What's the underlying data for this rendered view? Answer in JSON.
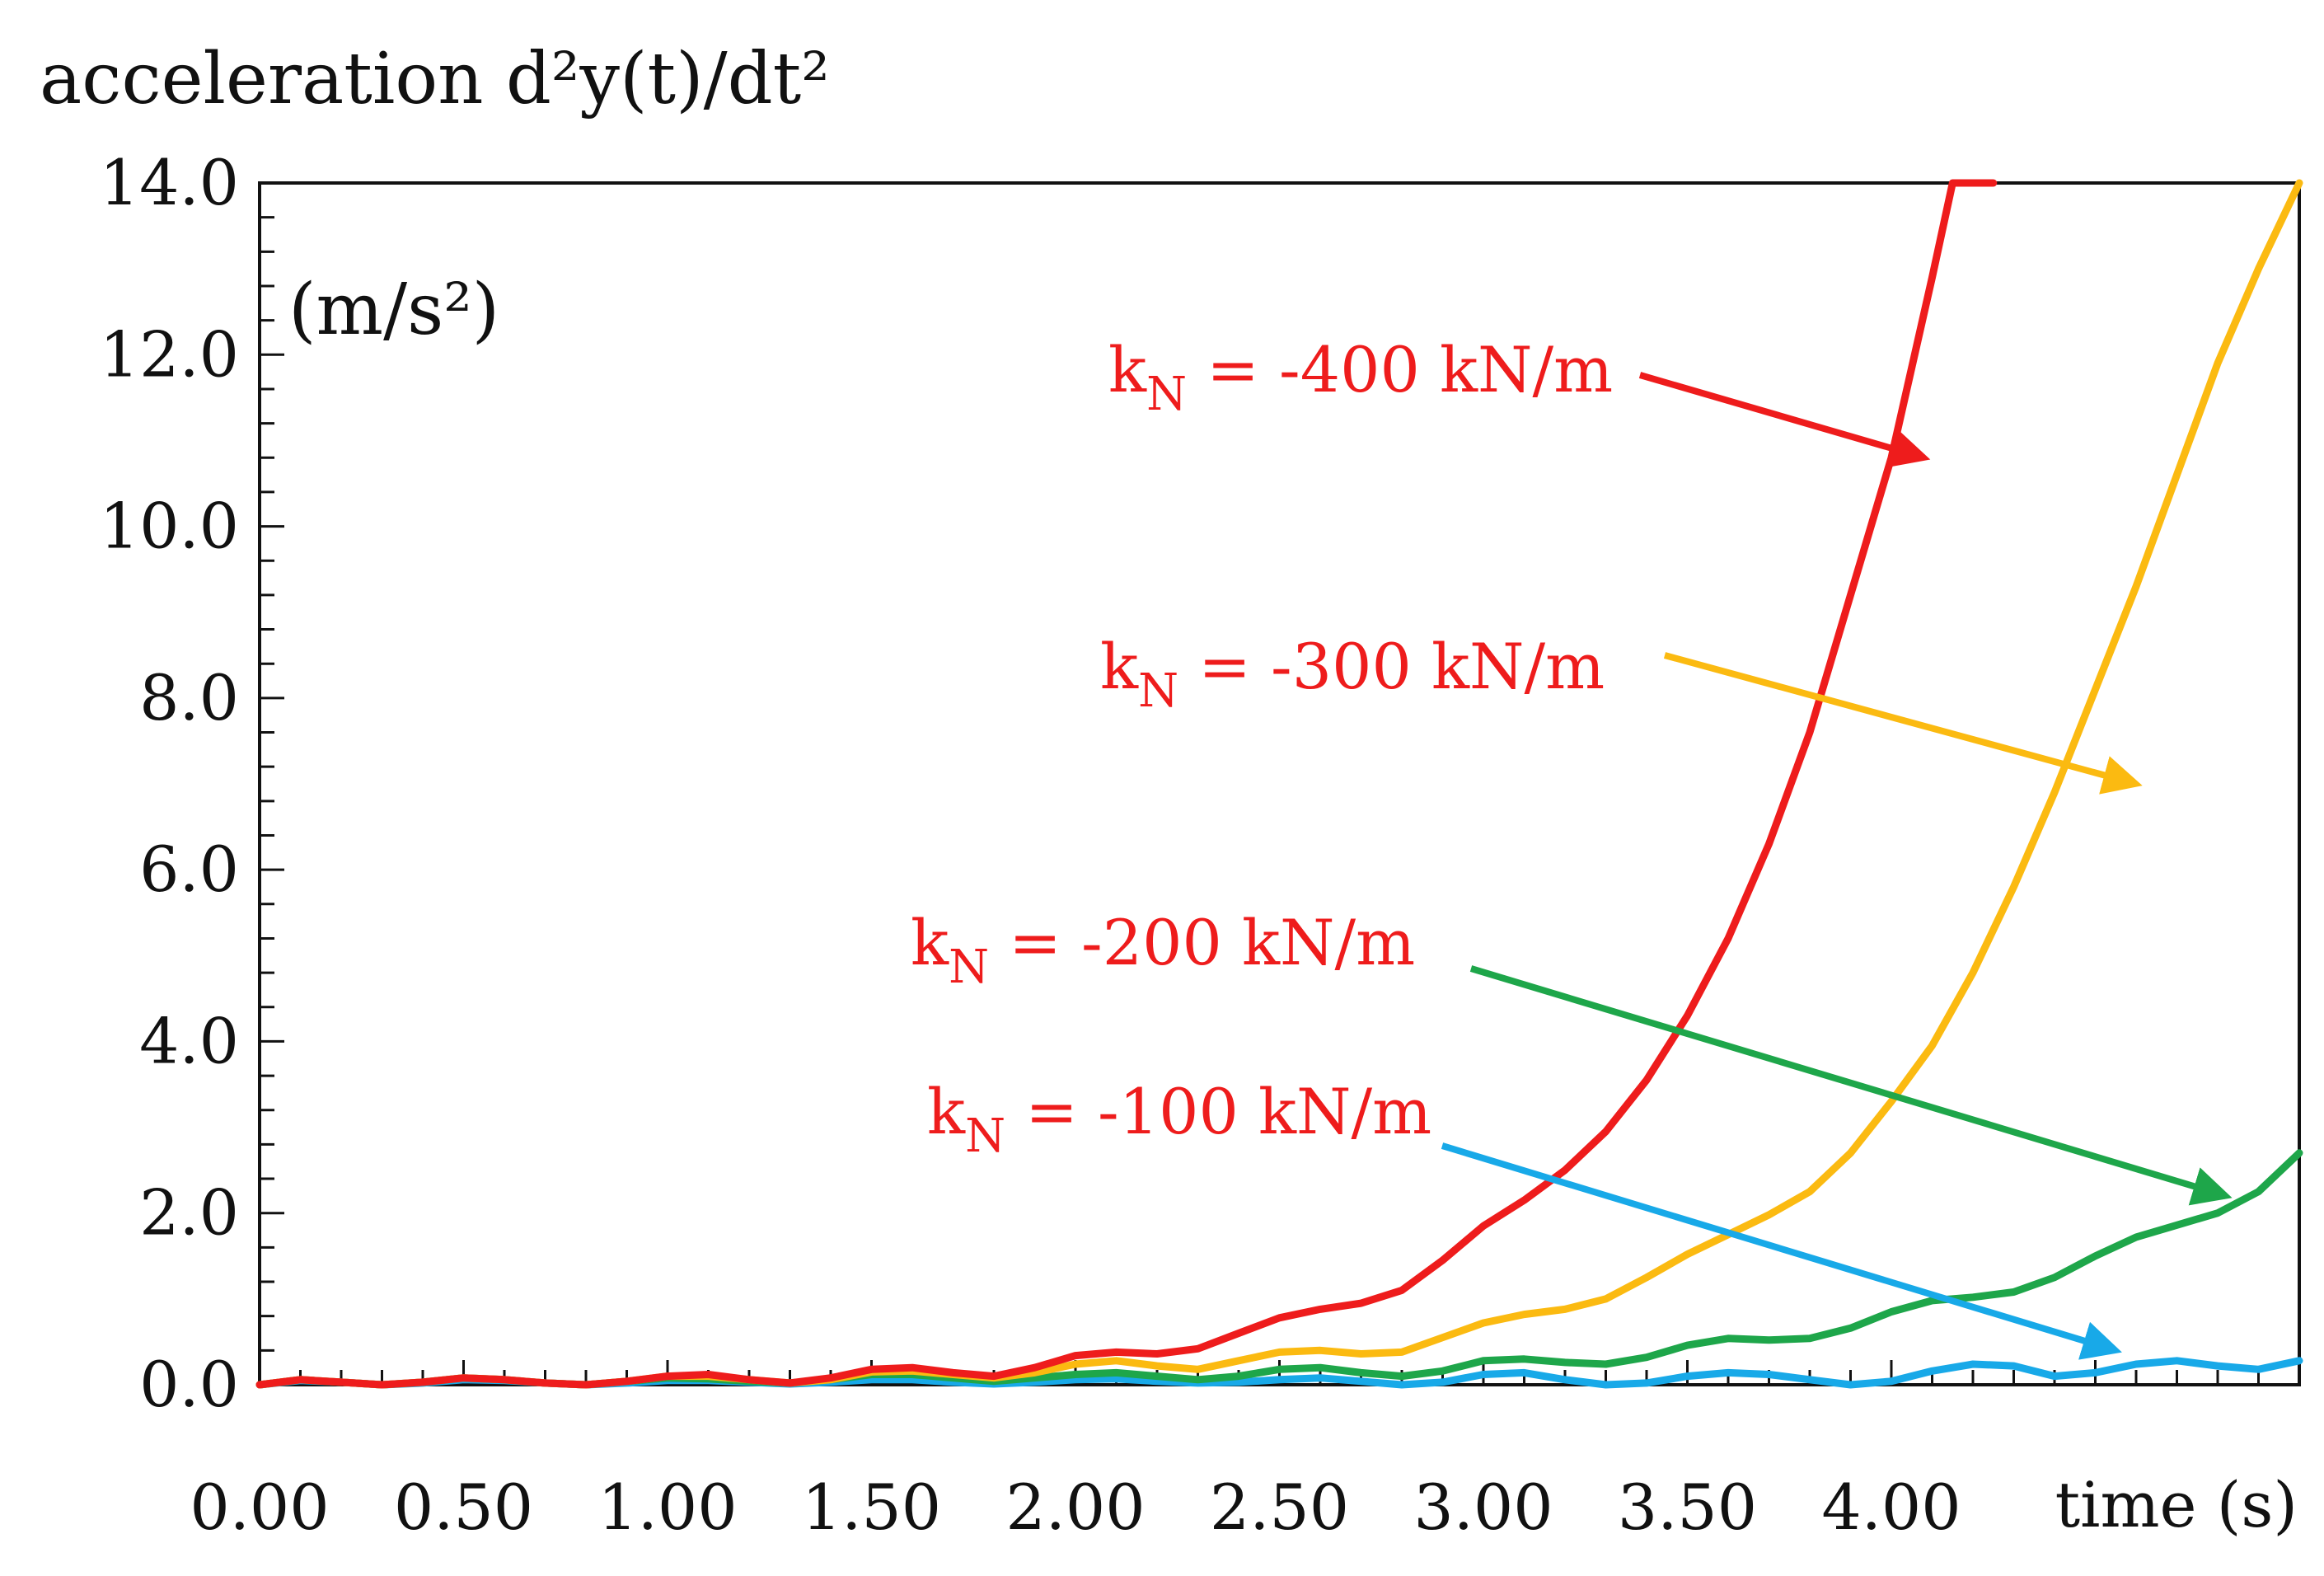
{
  "chart_data": {
    "type": "line",
    "title": "acceleration d²y(t)/dt²",
    "ylabel": "(m/s²)",
    "xlabel": "time (s)",
    "xlim": [
      0.0,
      5.0
    ],
    "ylim": [
      0.0,
      14.0
    ],
    "x_ticks": [
      "0.00",
      "0.50",
      "1.00",
      "1.50",
      "2.00",
      "2.50",
      "3.00",
      "3.50",
      "4.00"
    ],
    "y_ticks": [
      "0.0",
      "2.0",
      "4.0",
      "6.0",
      "8.0",
      "10.0",
      "12.0",
      "14.0"
    ],
    "grid": false,
    "series": [
      {
        "color": "#ee1c1c",
        "x": [
          0.0,
          0.1,
          0.2,
          0.3,
          0.4,
          0.5,
          0.6,
          0.7,
          0.8,
          0.9,
          1.0,
          1.1,
          1.2,
          1.3,
          1.4,
          1.5,
          1.6,
          1.7,
          1.8,
          1.9,
          2.0,
          2.1,
          2.2,
          2.3,
          2.4,
          2.5,
          2.6,
          2.7,
          2.8,
          2.9,
          3.0,
          3.1,
          3.2,
          3.3,
          3.4,
          3.5,
          3.6,
          3.7,
          3.8,
          3.9,
          4.0,
          4.1,
          4.15,
          4.2,
          4.25
        ],
        "y": [
          0.0,
          0.06,
          0.03,
          0.0,
          0.03,
          0.08,
          0.06,
          0.02,
          0.0,
          0.04,
          0.1,
          0.12,
          0.06,
          0.02,
          0.08,
          0.18,
          0.2,
          0.14,
          0.1,
          0.2,
          0.34,
          0.38,
          0.36,
          0.42,
          0.6,
          0.78,
          0.88,
          0.95,
          1.1,
          1.45,
          1.85,
          2.15,
          2.5,
          2.95,
          3.55,
          4.3,
          5.2,
          6.3,
          7.6,
          9.2,
          10.8,
          12.9,
          14.0,
          14.0,
          14.0
        ]
      },
      {
        "color": "#fbba11",
        "x": [
          0.0,
          0.1,
          0.2,
          0.3,
          0.4,
          0.5,
          0.6,
          0.7,
          0.8,
          0.9,
          1.0,
          1.1,
          1.2,
          1.3,
          1.4,
          1.5,
          1.6,
          1.7,
          1.8,
          1.9,
          2.0,
          2.1,
          2.2,
          2.3,
          2.4,
          2.5,
          2.6,
          2.7,
          2.8,
          2.9,
          3.0,
          3.1,
          3.2,
          3.3,
          3.4,
          3.5,
          3.6,
          3.7,
          3.8,
          3.9,
          4.0,
          4.1,
          4.2,
          4.3,
          4.4,
          4.5,
          4.6,
          4.7,
          4.8,
          4.9,
          5.0
        ],
        "y": [
          0.0,
          0.06,
          0.03,
          0.0,
          0.03,
          0.08,
          0.06,
          0.02,
          0.0,
          0.04,
          0.1,
          0.1,
          0.06,
          0.02,
          0.06,
          0.15,
          0.16,
          0.12,
          0.08,
          0.14,
          0.24,
          0.28,
          0.22,
          0.18,
          0.28,
          0.38,
          0.4,
          0.36,
          0.38,
          0.55,
          0.72,
          0.82,
          0.88,
          1.0,
          1.25,
          1.52,
          1.75,
          1.98,
          2.25,
          2.7,
          3.3,
          3.95,
          4.8,
          5.8,
          6.9,
          8.1,
          9.3,
          10.6,
          11.9,
          13.0,
          14.0
        ]
      },
      {
        "color": "#1ea64a",
        "x": [
          0.0,
          0.1,
          0.2,
          0.3,
          0.4,
          0.5,
          0.6,
          0.7,
          0.8,
          0.9,
          1.0,
          1.1,
          1.2,
          1.3,
          1.4,
          1.5,
          1.6,
          1.7,
          1.8,
          1.9,
          2.0,
          2.1,
          2.2,
          2.3,
          2.4,
          2.5,
          2.6,
          2.7,
          2.8,
          2.9,
          3.0,
          3.1,
          3.2,
          3.3,
          3.4,
          3.5,
          3.6,
          3.7,
          3.8,
          3.9,
          4.0,
          4.1,
          4.2,
          4.3,
          4.4,
          4.5,
          4.6,
          4.7,
          4.8,
          4.9,
          5.0
        ],
        "y": [
          0.0,
          0.06,
          0.03,
          0.0,
          0.03,
          0.08,
          0.06,
          0.02,
          0.0,
          0.04,
          0.08,
          0.07,
          0.04,
          0.02,
          0.06,
          0.12,
          0.12,
          0.08,
          0.04,
          0.08,
          0.12,
          0.14,
          0.1,
          0.06,
          0.1,
          0.18,
          0.2,
          0.14,
          0.1,
          0.16,
          0.28,
          0.3,
          0.26,
          0.24,
          0.32,
          0.46,
          0.54,
          0.52,
          0.54,
          0.66,
          0.85,
          0.98,
          1.02,
          1.08,
          1.25,
          1.5,
          1.72,
          1.86,
          2.0,
          2.25,
          2.7
        ]
      },
      {
        "color": "#18a9e8",
        "x": [
          0.0,
          0.1,
          0.2,
          0.3,
          0.4,
          0.5,
          0.6,
          0.7,
          0.8,
          0.9,
          1.0,
          1.1,
          1.2,
          1.3,
          1.4,
          1.5,
          1.6,
          1.7,
          1.8,
          1.9,
          2.0,
          2.1,
          2.2,
          2.3,
          2.4,
          2.5,
          2.6,
          2.7,
          2.8,
          2.9,
          3.0,
          3.1,
          3.2,
          3.3,
          3.4,
          3.5,
          3.6,
          3.7,
          3.8,
          3.9,
          4.0,
          4.1,
          4.2,
          4.3,
          4.4,
          4.5,
          4.6,
          4.7,
          4.8,
          4.9,
          5.0
        ],
        "y": [
          0.0,
          0.05,
          0.03,
          0.0,
          0.02,
          0.06,
          0.05,
          0.02,
          0.0,
          0.02,
          0.05,
          0.05,
          0.03,
          0.01,
          0.03,
          0.06,
          0.06,
          0.03,
          0.01,
          0.03,
          0.06,
          0.07,
          0.04,
          0.02,
          0.03,
          0.06,
          0.08,
          0.04,
          0.0,
          0.03,
          0.12,
          0.14,
          0.06,
          0.0,
          0.02,
          0.1,
          0.14,
          0.12,
          0.06,
          0.0,
          0.04,
          0.16,
          0.24,
          0.22,
          0.1,
          0.14,
          0.24,
          0.28,
          0.22,
          0.18,
          0.28
        ]
      }
    ],
    "annotations": [
      {
        "prefix": "k",
        "subscript": "N",
        "text": " = -400 kN/m",
        "color": "#ee1c1c",
        "series_color": "#ee1c1c",
        "arrow_to": [
          4.08,
          10.8
        ]
      },
      {
        "prefix": "k",
        "subscript": "N",
        "text": " = -300 kN/m",
        "color": "#ee1c1c",
        "series_color": "#fbba11",
        "arrow_to": [
          4.6,
          7.0
        ]
      },
      {
        "prefix": "k",
        "subscript": "N",
        "text": " = -200 kN/m",
        "color": "#ee1c1c",
        "series_color": "#1ea64a",
        "arrow_to": [
          4.82,
          2.2
        ]
      },
      {
        "prefix": "k",
        "subscript": "N",
        "text": " = -100 kN/m",
        "color": "#ee1c1c",
        "series_color": "#18a9e8",
        "arrow_to": [
          4.55,
          0.4
        ]
      }
    ]
  }
}
